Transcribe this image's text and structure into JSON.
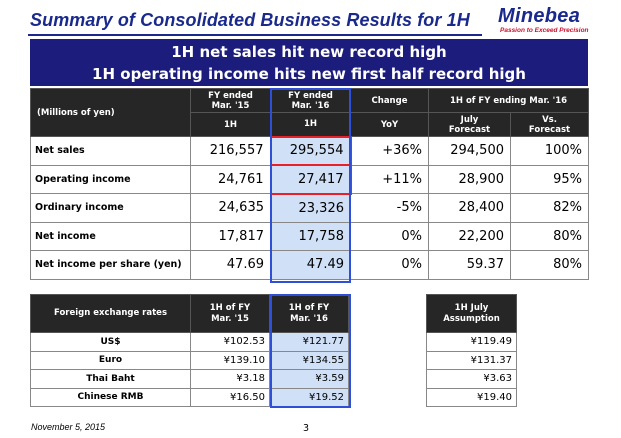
{
  "title": "Summary of Consolidated Business Results for 1H",
  "logo": {
    "name": "Minebea",
    "tagline": "Passion to Exceed Precision"
  },
  "headline": {
    "line1": "1H net sales hit new record high",
    "line2": "1H operating income hits new first half record high"
  },
  "main_table": {
    "row_header": "(Millions of yen)",
    "col1": {
      "line1": "FY ended",
      "line2": "Mar. '15",
      "sub": "1H"
    },
    "col2": {
      "line1": "FY ended",
      "line2": "Mar. '16",
      "sub": "1H"
    },
    "col3": {
      "line1": "Change",
      "sub": "YoY"
    },
    "group": "1H of FY ending Mar. '16",
    "col4": {
      "line1": "July",
      "line2": "Forecast"
    },
    "col5": {
      "line1": "Vs.",
      "line2": "Forecast"
    },
    "rows": [
      {
        "label": "Net sales",
        "prev": "216,557",
        "curr": "295,554",
        "change": "+36%",
        "forecast": "294,500",
        "vs": "100%"
      },
      {
        "label": "Operating income",
        "prev": "24,761",
        "curr": "27,417",
        "change": "+11%",
        "forecast": "28,900",
        "vs": "95%"
      },
      {
        "label": "Ordinary income",
        "prev": "24,635",
        "curr": "23,326",
        "change": "-5%",
        "forecast": "28,400",
        "vs": "82%"
      },
      {
        "label": "Net income",
        "prev": "17,817",
        "curr": "17,758",
        "change": "0%",
        "forecast": "22,200",
        "vs": "80%"
      },
      {
        "label": "Net income per share (yen)",
        "prev": "47.69",
        "curr": "47.49",
        "change": "0%",
        "forecast": "59.37",
        "vs": "80%"
      }
    ]
  },
  "fx_table": {
    "header": "Foreign exchange rates",
    "col1": {
      "line1": "1H of FY",
      "line2": "Mar. '15"
    },
    "col2": {
      "line1": "1H of FY",
      "line2": "Mar. '16"
    },
    "rows": [
      {
        "label": "US$",
        "prev": "¥102.53",
        "curr": "¥121.77"
      },
      {
        "label": "Euro",
        "prev": "¥139.10",
        "curr": "¥134.55"
      },
      {
        "label": "Thai Baht",
        "prev": "¥3.18",
        "curr": "¥3.59"
      },
      {
        "label": "Chinese RMB",
        "prev": "¥16.50",
        "curr": "¥19.52"
      }
    ]
  },
  "assumption_table": {
    "line1": "1H July",
    "line2": "Assumption",
    "values": [
      "¥119.49",
      "¥131.37",
      "¥3.63",
      "¥19.40"
    ]
  },
  "footer": {
    "date": "November 5, 2015",
    "page": "3"
  },
  "colors": {
    "brand": "#1a2a8c",
    "banner": "#1c1c7c",
    "highlight": "#cfe0f7",
    "frame_blue": "#2f4fd8",
    "frame_red": "#e8202a"
  }
}
